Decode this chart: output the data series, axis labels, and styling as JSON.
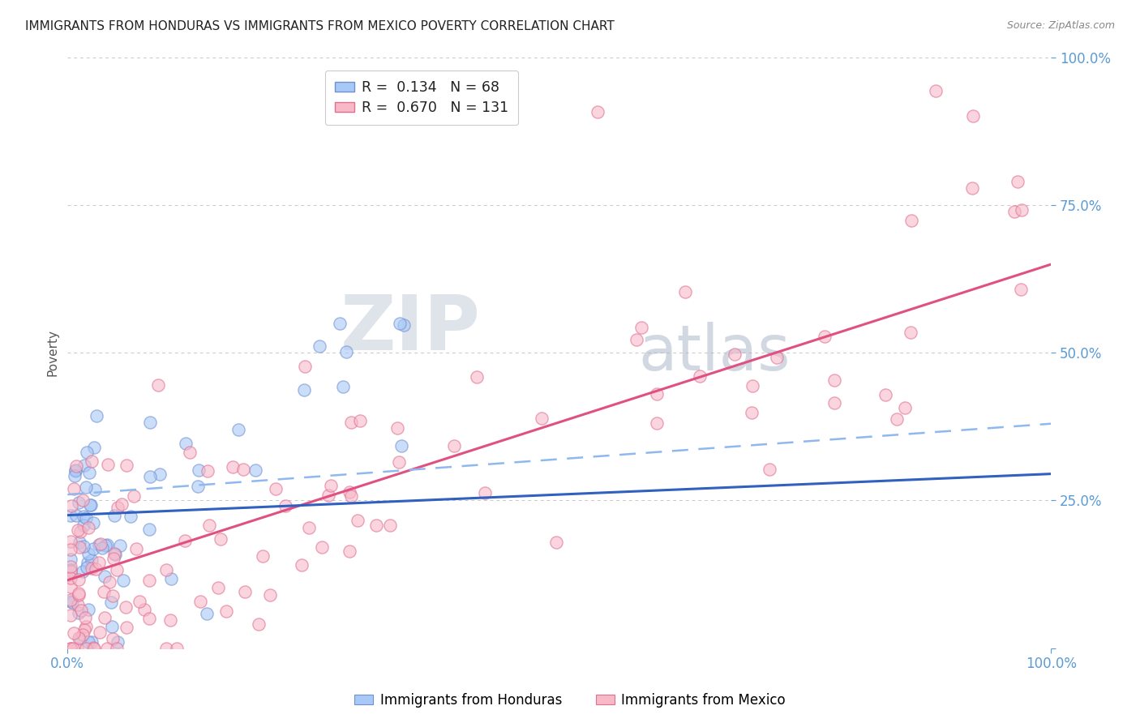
{
  "title": "IMMIGRANTS FROM HONDURAS VS IMMIGRANTS FROM MEXICO POVERTY CORRELATION CHART",
  "source": "Source: ZipAtlas.com",
  "ylabel": "Poverty",
  "legend1_label": "R =  0.134   N = 68",
  "legend2_label": "R =  0.670   N = 131",
  "blue_color": "#a8c8f8",
  "pink_color": "#f8b8c8",
  "blue_edge_color": "#7090d0",
  "pink_edge_color": "#e07090",
  "blue_line_color": "#3060c0",
  "pink_line_color": "#e05080",
  "blue_dashed_color": "#90b8f0",
  "tick_color": "#5b9bd5",
  "watermark_zip": "ZIP",
  "watermark_atlas": "atlas",
  "watermark_color_zip": "#c0cce0",
  "watermark_color_atlas": "#a8b8d8",
  "background_color": "#ffffff",
  "grid_color": "#c8c8c8",
  "title_color": "#222222",
  "source_color": "#888888",
  "ylabel_color": "#555555",
  "bottom_legend_blue": "Immigrants from Honduras",
  "bottom_legend_pink": "Immigrants from Mexico",
  "xlim": [
    0,
    1
  ],
  "ylim": [
    0,
    1
  ],
  "yticks": [
    0.0,
    0.25,
    0.5,
    0.75,
    1.0
  ],
  "ytick_labels": [
    "",
    "25.0%",
    "50.0%",
    "75.0%",
    "100.0%"
  ],
  "xticks": [
    0.0,
    1.0
  ],
  "xtick_labels": [
    "0.0%",
    "100.0%"
  ],
  "pink_line_x0": 0.0,
  "pink_line_y0": 0.115,
  "pink_line_x1": 1.0,
  "pink_line_y1": 0.65,
  "blue_line_x0": 0.0,
  "blue_line_y0": 0.225,
  "blue_line_x1": 1.0,
  "blue_line_y1": 0.295,
  "dashed_line_x0": 0.0,
  "dashed_line_y0": 0.26,
  "dashed_line_x1": 1.0,
  "dashed_line_y1": 0.38
}
